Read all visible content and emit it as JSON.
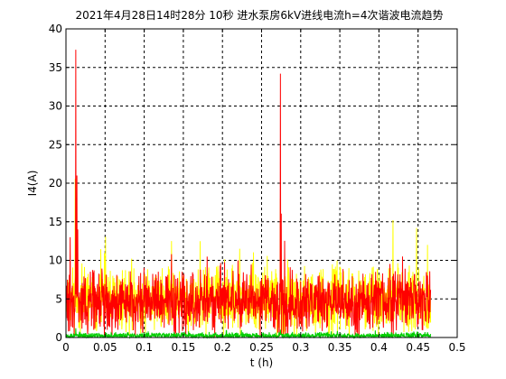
{
  "chart_data": {
    "type": "line",
    "title": "2021年4月28日14时28分 10秒  进水泵房6kV进线电流h=4次谐波电流趋势",
    "xlabel": "t (h)",
    "ylabel": "I4(A)",
    "xlim": [
      0,
      0.5
    ],
    "ylim": [
      0,
      40
    ],
    "x_ticks": [
      {
        "value": 0,
        "label": "0"
      },
      {
        "value": 0.05,
        "label": "0.05"
      },
      {
        "value": 0.1,
        "label": "0.1"
      },
      {
        "value": 0.15,
        "label": "0.15"
      },
      {
        "value": 0.2,
        "label": "0.2"
      },
      {
        "value": 0.25,
        "label": "0.25"
      },
      {
        "value": 0.3,
        "label": "0.3"
      },
      {
        "value": 0.35,
        "label": "0.35"
      },
      {
        "value": 0.4,
        "label": "0.4"
      },
      {
        "value": 0.45,
        "label": "0.45"
      },
      {
        "value": 0.5,
        "label": "0.5"
      }
    ],
    "y_ticks": [
      {
        "value": 0,
        "label": "0"
      },
      {
        "value": 5,
        "label": "5"
      },
      {
        "value": 10,
        "label": "10"
      },
      {
        "value": 15,
        "label": "15"
      },
      {
        "value": 20,
        "label": "20"
      },
      {
        "value": 25,
        "label": "25"
      },
      {
        "value": 30,
        "label": "30"
      },
      {
        "value": 35,
        "label": "35"
      },
      {
        "value": 40,
        "label": "40"
      }
    ],
    "grid": true,
    "grid_style": "dashed",
    "x_end": 0.466,
    "series": [
      {
        "color": "#ffff00",
        "base": 5.0,
        "noise": 4.6,
        "seed": 11,
        "spikes": [
          [
            0.012,
            20.5
          ],
          [
            0.135,
            12.5
          ],
          [
            0.222,
            11.5
          ],
          [
            0.274,
            18.0
          ],
          [
            0.418,
            15.2
          ],
          [
            0.448,
            14.2
          ],
          [
            0.462,
            12.0
          ]
        ]
      },
      {
        "color": "#ff0000",
        "base": 4.6,
        "noise": 4.2,
        "seed": 29,
        "spikes": [
          [
            0.0055,
            13.0
          ],
          [
            0.0125,
            37.3
          ],
          [
            0.014,
            21.0
          ],
          [
            0.015,
            14.0
          ],
          [
            0.135,
            10.8
          ],
          [
            0.22,
            10.0
          ],
          [
            0.274,
            34.2
          ],
          [
            0.275,
            16.0
          ],
          [
            0.43,
            10.5
          ]
        ]
      },
      {
        "color": "#00cc00",
        "base": 0.25,
        "noise": 0.45,
        "seed": 53,
        "spikes": [
          [
            0.0125,
            1.2
          ],
          [
            0.205,
            0.9
          ],
          [
            0.274,
            1.0
          ]
        ]
      }
    ]
  }
}
